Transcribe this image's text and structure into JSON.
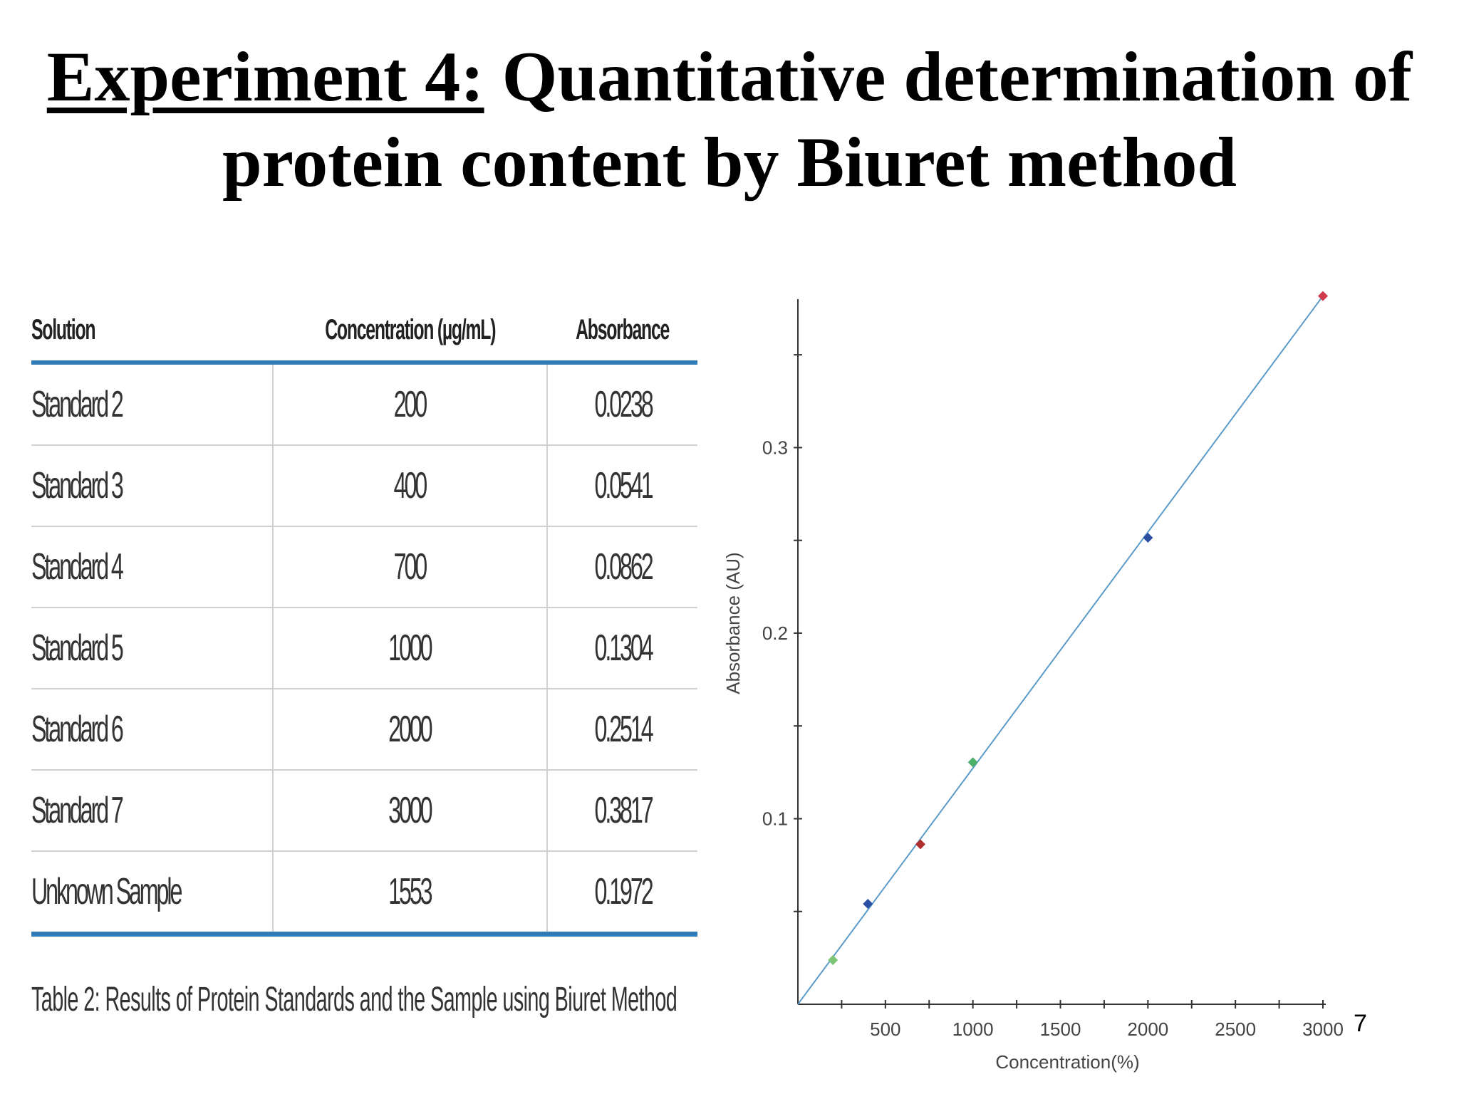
{
  "title": {
    "underlined": "Experiment 4:",
    "rest_line1": "Quantitative determination of",
    "line2": "protein content by Biuret method"
  },
  "table": {
    "headers": [
      "Solution",
      "Concentration (µg/mL)",
      "Absorbance"
    ],
    "rows": [
      [
        "Standard 2",
        "200",
        "0.0238"
      ],
      [
        "Standard 3",
        "400",
        "0.0541"
      ],
      [
        "Standard 4",
        "700",
        "0.0862"
      ],
      [
        "Standard 5",
        "1000",
        "0.1304"
      ],
      [
        "Standard 6",
        "2000",
        "0.2514"
      ],
      [
        "Standard 7",
        "3000",
        "0.3817"
      ],
      [
        "Unknown Sample",
        "1553",
        "0.1972"
      ]
    ],
    "caption": "Table 2: Results of Protein Standards and the Sample using Biuret Method",
    "accent_color": "#2e7bb8"
  },
  "chart_data": {
    "type": "scatter",
    "xlabel": "Concentration(%)",
    "ylabel": "Absorbance (AU)",
    "xlim": [
      0,
      3000
    ],
    "ylim": [
      0,
      0.38
    ],
    "x_ticks": [
      500,
      1000,
      1500,
      2000,
      2500,
      3000
    ],
    "y_ticks": [
      0.1,
      0.2,
      0.3
    ],
    "grid": false,
    "points": [
      {
        "x": 200,
        "y": 0.0238,
        "color": "#7cc576"
      },
      {
        "x": 400,
        "y": 0.0541,
        "color": "#2b4fa3"
      },
      {
        "x": 700,
        "y": 0.0862,
        "color": "#b03030"
      },
      {
        "x": 1000,
        "y": 0.1304,
        "color": "#4caf6a"
      },
      {
        "x": 2000,
        "y": 0.2514,
        "color": "#2b4fa3"
      },
      {
        "x": 3000,
        "y": 0.3817,
        "color": "#d03a4a"
      }
    ],
    "fit_line": {
      "x": [
        0,
        3000
      ],
      "y": [
        0,
        0.3817
      ],
      "color": "#5b9bc8"
    }
  },
  "page_number": "7"
}
